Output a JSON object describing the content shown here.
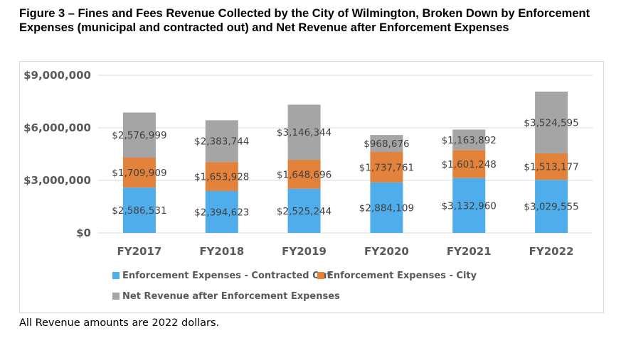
{
  "title": "Figure 3 – Fines and Fees Revenue Collected by the City of Wilmington, Broken Down by Enforcement Expenses (municipal and contracted out) and Net Revenue after Enforcement Expenses",
  "footnote": "All Revenue amounts are 2022 dollars.",
  "chart_data": {
    "type": "bar",
    "stacked": true,
    "categories": [
      "FY2017",
      "FY2018",
      "FY2019",
      "FY2020",
      "FY2021",
      "FY2022"
    ],
    "series": [
      {
        "name": "Enforcement Expenses - Contracted Out",
        "color": "#4EADEA",
        "values": [
          2586531,
          2394623,
          2525244,
          2884109,
          3132960,
          3029555
        ],
        "labels": [
          "$2,586,531",
          "$2,394,623",
          "$2,525,244",
          "$2,884,109",
          "$3,132,960",
          "$3,029,555"
        ]
      },
      {
        "name": "Enforcement Expenses - City",
        "color": "#E2823B",
        "values": [
          1709909,
          1653928,
          1648696,
          1737761,
          1601248,
          1513177
        ],
        "labels": [
          "$1,709,909",
          "$1,653,928",
          "$1,648,696",
          "$1,737,761",
          "$1,601,248",
          "$1,513,177"
        ]
      },
      {
        "name": "Net Revenue after Enforcement Expenses",
        "color": "#A5A5A5",
        "values": [
          2576999,
          2383744,
          3146344,
          968676,
          1163892,
          3524595
        ],
        "labels": [
          "$2,576,999",
          "$2,383,744",
          "$3,146,344",
          "$968,676",
          "$1,163,892",
          "$3,524,595"
        ]
      }
    ],
    "yticks": [
      0,
      3000000,
      6000000,
      9000000
    ],
    "ytick_labels": [
      "$0",
      "$3,000,000",
      "$6,000,000",
      "$9,000,000"
    ],
    "ylim": [
      0,
      9000000
    ],
    "grid": true,
    "legend_position": "bottom"
  }
}
